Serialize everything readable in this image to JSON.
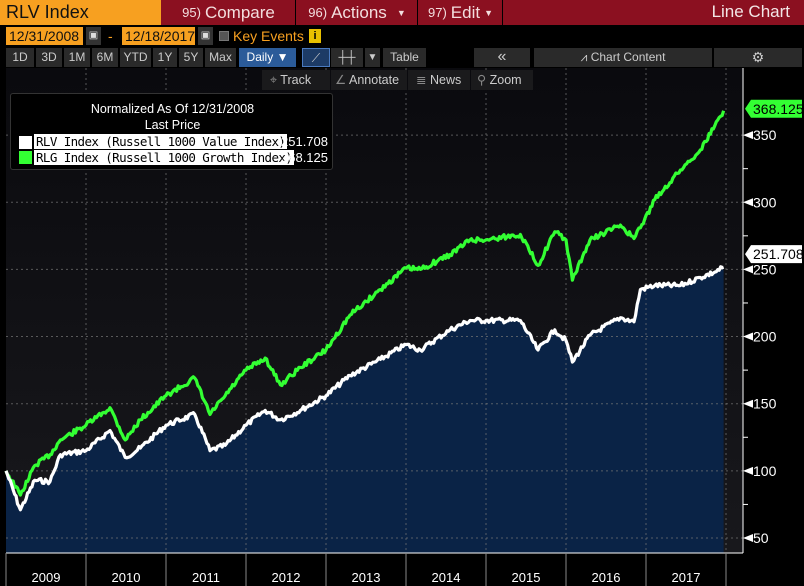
{
  "header": {
    "ticker": "RLV Index",
    "compare_num": "95)",
    "compare": "Compare",
    "actions_num": "96)",
    "actions": "Actions",
    "edit_num": "97)",
    "edit": "Edit",
    "chart_type": "Line Chart"
  },
  "dates": {
    "start": "12/31/2008",
    "sep": "-",
    "end": "12/18/2017",
    "key_events": "Key Events"
  },
  "periods": [
    "1D",
    "3D",
    "1M",
    "6M",
    "YTD",
    "1Y",
    "5Y",
    "Max"
  ],
  "frequency": "Daily",
  "table_label": "Table",
  "collapse": "«",
  "chart_content": "Chart Content",
  "tools": {
    "track": "Track",
    "annotate": "Annotate",
    "news": "News",
    "zoom": "Zoom"
  },
  "legend": {
    "title": "Normalized As Of 12/31/2008",
    "subtitle": "Last Price",
    "items": [
      {
        "name": "RLV Index (Russell 1000 Value Index)",
        "value": "251.708",
        "color": "#ffffff"
      },
      {
        "name": "RLG Index (Russell 1000 Growth Index)",
        "value": "368.125",
        "color": "#33ff33"
      }
    ]
  },
  "chart_data": {
    "type": "line",
    "title": "Normalized As Of 12/31/2008",
    "ylim": [
      40,
      390
    ],
    "yticks": [
      50,
      100,
      150,
      200,
      250,
      300,
      350
    ],
    "xlim": [
      2009.0,
      2018.0
    ],
    "xticks": [
      "2009",
      "2010",
      "2011",
      "2012",
      "2013",
      "2014",
      "2015",
      "2016",
      "2017"
    ],
    "grid": true,
    "legend_placement": "top-left",
    "series": [
      {
        "name": "RLV Index (Russell 1000 Value Index)",
        "color": "#ffffff",
        "fill": "#0a2346",
        "last": "251.708",
        "x": [
          2009.0,
          2009.18,
          2009.36,
          2009.55,
          2009.68,
          2010.0,
          2010.3,
          2010.49,
          2010.68,
          2011.0,
          2011.36,
          2011.55,
          2011.74,
          2012.0,
          2012.24,
          2012.43,
          2012.68,
          2013.0,
          2013.3,
          2013.68,
          2014.0,
          2014.18,
          2014.55,
          2014.8,
          2015.0,
          2015.43,
          2015.65,
          2015.86,
          2016.0,
          2016.08,
          2016.3,
          2016.68,
          2016.85,
          2016.93,
          2017.11,
          2017.43,
          2017.68,
          2017.86,
          2017.97
        ],
        "y": [
          100,
          71,
          93,
          92,
          112,
          115,
          130,
          110,
          117,
          134,
          142,
          115,
          119,
          134,
          145,
          138,
          145,
          156,
          171,
          183,
          194,
          190,
          205,
          212,
          212,
          212,
          190,
          205,
          197,
          181,
          201,
          214,
          211,
          235,
          238,
          238,
          244,
          248,
          251.708
        ]
      },
      {
        "name": "RLG Index (Russell 1000 Growth Index)",
        "color": "#33ff33",
        "last": "368.125",
        "x": [
          2009.0,
          2009.18,
          2009.36,
          2009.55,
          2009.68,
          2010.0,
          2010.3,
          2010.49,
          2010.68,
          2011.0,
          2011.36,
          2011.55,
          2011.74,
          2012.0,
          2012.24,
          2012.43,
          2012.68,
          2013.0,
          2013.3,
          2013.68,
          2014.0,
          2014.18,
          2014.55,
          2014.8,
          2015.0,
          2015.43,
          2015.65,
          2015.86,
          2016.0,
          2016.08,
          2016.3,
          2016.68,
          2016.85,
          2016.93,
          2017.11,
          2017.43,
          2017.68,
          2017.86,
          2017.97
        ],
        "y": [
          100,
          82,
          104,
          112,
          123,
          134,
          147,
          123,
          138,
          156,
          169,
          142,
          156,
          175,
          184,
          164,
          177,
          190,
          216,
          235,
          251,
          250,
          261,
          272,
          272,
          276,
          253,
          278,
          272,
          242,
          272,
          283,
          273,
          281,
          302,
          324,
          339,
          357,
          368.125
        ]
      }
    ]
  }
}
